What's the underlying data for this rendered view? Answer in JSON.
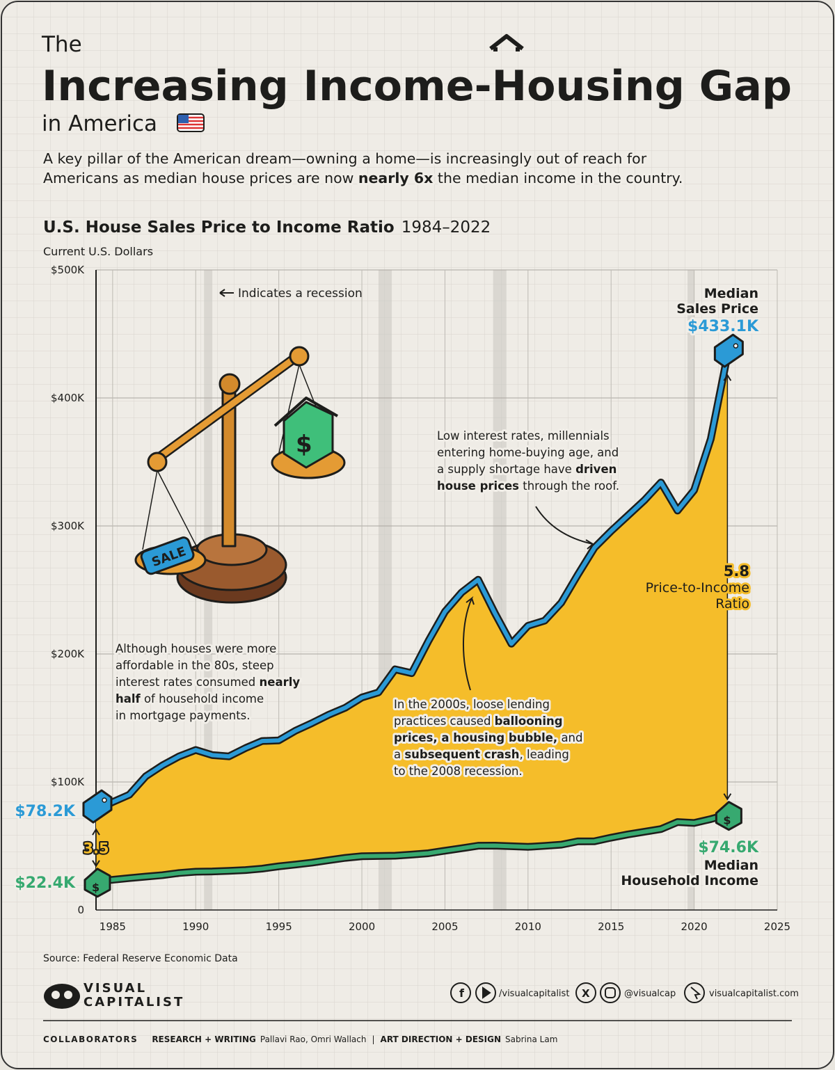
{
  "header": {
    "pre": "The",
    "title": "Increasing Income-Housing Gap",
    "post": "in America",
    "subtitle": [
      [
        {
          "text": "A key pillar of the American dream—owning a home—is increasingly out of reach for",
          "bold": false
        }
      ],
      [
        {
          "text": "Americans as median house prices are now ",
          "bold": false
        },
        {
          "text": "nearly 6x",
          "bold": true
        },
        {
          "text": " the median income in the country.",
          "bold": false
        }
      ]
    ]
  },
  "chart_data": {
    "type": "area-between",
    "title": "U.S. House Sales Price to Income Ratio",
    "title_years": "1984–2022",
    "y_label": "Current U.S. Dollars",
    "x": [
      1984,
      1985,
      1986,
      1987,
      1988,
      1989,
      1990,
      1991,
      1992,
      1993,
      1994,
      1995,
      1996,
      1997,
      1998,
      1999,
      2000,
      2001,
      2002,
      2003,
      2004,
      2005,
      2006,
      2007,
      2008,
      2009,
      2010,
      2011,
      2012,
      2013,
      2014,
      2015,
      2016,
      2017,
      2018,
      2019,
      2020,
      2021,
      2022
    ],
    "series": [
      {
        "name": "Median Sales Price",
        "color": "#2b9ad6",
        "values": [
          78200,
          84300,
          90000,
          104500,
          113000,
          120000,
          125000,
          121000,
          120000,
          126500,
          132000,
          132500,
          140000,
          146000,
          152500,
          158000,
          166000,
          170000,
          188000,
          185000,
          210000,
          233000,
          248000,
          258000,
          232000,
          208000,
          222000,
          226000,
          240000,
          262000,
          283000,
          296000,
          308000,
          320000,
          334000,
          312000,
          328000,
          368000,
          433100
        ],
        "value_labels": [
          "$78.2K",
          null,
          null,
          null,
          null,
          null,
          null,
          null,
          null,
          null,
          null,
          null,
          null,
          null,
          null,
          null,
          null,
          null,
          null,
          null,
          null,
          null,
          null,
          null,
          null,
          null,
          null,
          null,
          null,
          null,
          null,
          null,
          null,
          null,
          null,
          null,
          null,
          null,
          "$433.1K"
        ]
      },
      {
        "name": "Median Household Income",
        "color": "#37a970",
        "values": [
          22400,
          23600,
          24900,
          26100,
          27200,
          28900,
          29900,
          30100,
          30600,
          31200,
          32300,
          34100,
          35500,
          37000,
          38900,
          40700,
          42000,
          42200,
          42400,
          43300,
          44300,
          46300,
          48200,
          50200,
          50300,
          49800,
          49300,
          50100,
          51000,
          53600,
          53700,
          56500,
          59000,
          61100,
          63200,
          68700,
          68000,
          71000,
          74600
        ],
        "value_labels": [
          "$22.4K",
          null,
          null,
          null,
          null,
          null,
          null,
          null,
          null,
          null,
          null,
          null,
          null,
          null,
          null,
          null,
          null,
          null,
          null,
          null,
          null,
          null,
          null,
          null,
          null,
          null,
          null,
          null,
          null,
          null,
          null,
          null,
          null,
          null,
          null,
          null,
          null,
          null,
          "$74.6K"
        ]
      }
    ],
    "area_color": "#f5bd2a",
    "xlim": [
      1984,
      2025
    ],
    "xticks": [
      1985,
      1990,
      1995,
      2000,
      2005,
      2010,
      2015,
      2020,
      2025
    ],
    "ylim": [
      0,
      500000
    ],
    "yticks": [
      0,
      {
        "value": 100000,
        "label": "$100K"
      },
      {
        "value": 200000,
        "label": "$200K"
      },
      {
        "value": 300000,
        "label": "$300K"
      },
      {
        "value": 400000,
        "label": "$400K"
      },
      {
        "value": 500000,
        "label": "$500K"
      }
    ],
    "grid": true,
    "recessions": [
      [
        1990.5,
        1991
      ],
      [
        2001,
        2001.8
      ],
      [
        2007.9,
        2008.7
      ],
      [
        2019.6,
        2020
      ]
    ],
    "recession_note": "Indicates a recession",
    "ratio_labels": [
      {
        "x": 1984,
        "value": 3.5
      },
      {
        "x": 2022,
        "value": 5.8,
        "label": "Price-to-Income Ratio"
      }
    ],
    "annotations": [
      [
        [
          {
            "text": "Although houses were more",
            "bold": false
          }
        ],
        [
          {
            "text": "affordable in the 80s, steep",
            "bold": false
          }
        ],
        [
          {
            "text": "interest rates consumed ",
            "bold": false
          },
          {
            "text": "nearly",
            "bold": true
          }
        ],
        [
          {
            "text": "half",
            "bold": true
          },
          {
            "text": " of household income",
            "bold": false
          }
        ],
        [
          {
            "text": "in mortgage payments.",
            "bold": false
          }
        ]
      ],
      [
        [
          {
            "text": "In the 2000s, loose lending",
            "bold": false
          }
        ],
        [
          {
            "text": "practices caused ",
            "bold": false
          },
          {
            "text": "ballooning",
            "bold": true
          }
        ],
        [
          {
            "text": "prices, a housing bubble,",
            "bold": true
          },
          {
            "text": " and",
            "bold": false
          }
        ],
        [
          {
            "text": "a ",
            "bold": false
          },
          {
            "text": "subsequent crash",
            "bold": true
          },
          {
            "text": ", leading",
            "bold": false
          }
        ],
        [
          {
            "text": "to the 2008 recession.",
            "bold": false
          }
        ]
      ],
      [
        [
          {
            "text": "Low interest rates, millennials",
            "bold": false
          }
        ],
        [
          {
            "text": "entering home-buying age, and",
            "bold": false
          }
        ],
        [
          {
            "text": "a supply shortage have ",
            "bold": false
          },
          {
            "text": "driven",
            "bold": true
          }
        ],
        [
          {
            "text": "house prices",
            "bold": true
          },
          {
            "text": " through the roof.",
            "bold": false
          }
        ]
      ]
    ]
  },
  "footer": {
    "source": "Source: Federal Reserve Economic Data",
    "logo": [
      "VISUAL",
      "CAPITALIST"
    ],
    "social": [
      "/visualcapitalist",
      "@visualcap",
      "visualcapitalist.com"
    ],
    "collaborators": {
      "label": "COLLABORATORS",
      "credits": [
        {
          "role": "RESEARCH + WRITING",
          "names": "Pallavi Rao, Omri Wallach"
        },
        {
          "role": "ART DIRECTION + DESIGN",
          "names": "Sabrina Lam"
        }
      ]
    }
  }
}
